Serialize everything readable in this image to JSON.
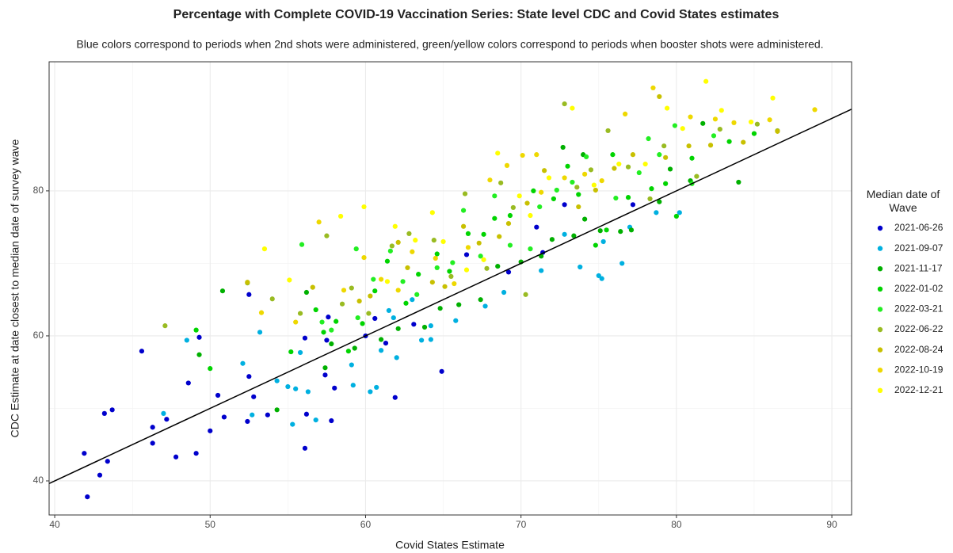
{
  "chart_data": {
    "type": "scatter",
    "title": "Percentage with Complete COVID-19 Vaccination Series: State level CDC and Covid States estimates",
    "subtitle": "Blue colors correspond to periods when 2nd shots were administered, green/yellow colors correspond to periods when booster shots were administered.",
    "x_label": "Covid States Estimate",
    "y_label": "CDC Estimate at date closest to median date of survey wave",
    "legend_title": "Median date of Wave",
    "xlim": [
      39.64,
      91.27
    ],
    "ylim": [
      35.3,
      97.8
    ],
    "xticks": [
      40,
      50,
      60,
      70,
      80,
      90
    ],
    "yticks": [
      40,
      60,
      80
    ],
    "grid": true,
    "reference_line": {
      "x": [
        39.64,
        91.27
      ],
      "y": [
        39.64,
        91.27
      ]
    },
    "series": [
      {
        "name": "2021-06-26",
        "color": "#0000cc",
        "x": [
          41.9,
          42.1,
          42.9,
          43.2,
          43.4,
          43.7,
          45.6,
          46.3,
          46.3,
          47.2,
          47.8,
          48.6,
          49.1,
          49.3,
          50,
          50.5,
          50.9,
          52.4,
          52.5,
          52.5,
          52.8,
          53.7,
          56.1,
          56.1,
          56.2,
          57.4,
          57.6,
          57.8,
          58,
          60,
          61.3,
          61.9,
          63.1,
          64.9,
          66.5,
          69.2,
          71,
          71.4,
          72.8,
          77.2,
          60.6,
          57.5
        ],
        "values": [
          43.8,
          37.8,
          40.8,
          49.3,
          42.7,
          49.8,
          57.9,
          45.2,
          47.4,
          48.5,
          43.3,
          53.5,
          43.8,
          59.8,
          46.9,
          51.8,
          48.8,
          48.2,
          54.4,
          65.7,
          51.6,
          49.1,
          44.5,
          59.7,
          49.2,
          54.6,
          62.6,
          48.3,
          52.8,
          60,
          59,
          51.5,
          61.6,
          55.1,
          71.2,
          68.8,
          75,
          71.5,
          78.1,
          78.1,
          62.4,
          59.4
        ]
      },
      {
        "name": "2021-09-07",
        "color": "#00b0e0",
        "x": [
          47,
          48.5,
          52.1,
          52.7,
          53.2,
          54.3,
          55,
          55.3,
          55.5,
          55.8,
          56.3,
          56.8,
          59.1,
          59.2,
          60.3,
          60.7,
          61,
          61.5,
          62,
          63,
          63.6,
          64.2,
          64.2,
          65.8,
          67.7,
          68.9,
          71.3,
          72.8,
          73.8,
          75,
          75.2,
          75.3,
          76.5,
          78.7,
          80.2,
          77,
          61.8
        ],
        "values": [
          49.3,
          59.4,
          56.2,
          49.1,
          60.5,
          53.8,
          53,
          47.8,
          52.7,
          57.7,
          52.3,
          48.4,
          56,
          53.2,
          52.3,
          52.9,
          58,
          63.5,
          57,
          65,
          59.4,
          59.5,
          61.4,
          62.1,
          64.1,
          66,
          69,
          74,
          69.5,
          68.3,
          67.9,
          73,
          70,
          77,
          77,
          75,
          62.5
        ]
      },
      {
        "name": "2021-11-17",
        "color": "#00b000",
        "x": [
          49.3,
          50.8,
          54.3,
          56.2,
          57.4,
          57.8,
          59.3,
          61,
          62.1,
          63.8,
          64.8,
          66,
          67.4,
          68.5,
          70,
          71.3,
          72,
          73.4,
          74.1,
          75.1,
          76.4,
          77.1,
          78.9,
          80.9,
          84,
          72.7,
          74,
          79.6,
          81.7
        ],
        "values": [
          57.4,
          66.2,
          49.8,
          66,
          55.6,
          58.9,
          58.3,
          59.5,
          61,
          61.2,
          63.8,
          64.3,
          65,
          69.6,
          70.2,
          71,
          73.3,
          73.8,
          76.1,
          74.5,
          74.4,
          74.6,
          78.5,
          81.4,
          81.2,
          86,
          85,
          83,
          89.3
        ]
      },
      {
        "name": "2022-01-02",
        "color": "#00d400",
        "x": [
          49.1,
          50,
          55.2,
          56.8,
          57.3,
          58.1,
          58.9,
          59.8,
          60.6,
          61.4,
          62.6,
          63.4,
          64.6,
          65.4,
          66.6,
          67.6,
          68.3,
          69.3,
          70.8,
          72.1,
          73,
          73.7,
          74.8,
          75.5,
          76.9,
          78.4,
          79.3,
          81,
          83.4,
          85,
          75.9,
          80
        ],
        "values": [
          60.8,
          55.5,
          57.8,
          63.6,
          60.5,
          62,
          57.9,
          61.7,
          66.2,
          70.3,
          64.5,
          68.5,
          71.3,
          68.9,
          74.1,
          74,
          76.2,
          76.6,
          80,
          78.9,
          83.4,
          79.5,
          72.5,
          74.6,
          79.1,
          80.3,
          81,
          84.5,
          86.8,
          87.9,
          85,
          76.5
        ]
      },
      {
        "name": "2022-03-21",
        "color": "#22ee22",
        "x": [
          55.9,
          57.2,
          57.8,
          59.4,
          59.5,
          60.5,
          61.6,
          62.4,
          63.3,
          64.6,
          65.6,
          66.3,
          67.4,
          68.3,
          69.3,
          70.6,
          71.2,
          72.3,
          73.3,
          74.2,
          76.1,
          77.6,
          78.2,
          78.9,
          79.9,
          81,
          82.4
        ],
        "values": [
          72.6,
          61.9,
          60.8,
          72,
          62.5,
          67.8,
          71.7,
          67.5,
          65.7,
          69.4,
          70.1,
          77.3,
          71,
          79.3,
          72.5,
          72,
          77.8,
          80.1,
          81.2,
          84.7,
          79,
          82.5,
          87.2,
          85,
          89,
          81,
          87.6
        ]
      },
      {
        "name": "2022-06-22",
        "color": "#99bb22",
        "x": [
          47.1,
          52.4,
          54,
          55.8,
          57.5,
          58.5,
          59.1,
          60.2,
          61.7,
          62.8,
          64.4,
          65.5,
          66.4,
          67.8,
          68.7,
          69.5,
          70.3,
          72.8,
          73.6,
          74.5,
          75.6,
          76.9,
          78.3,
          79.2,
          81.3,
          82.8,
          85.2,
          86.5
        ],
        "values": [
          61.4,
          67.3,
          65.1,
          63.1,
          73.8,
          64.4,
          66.6,
          63.1,
          72.4,
          74.1,
          73.2,
          68.2,
          79.6,
          69.3,
          81.1,
          77.7,
          65.7,
          92,
          80.5,
          82.9,
          88.3,
          83.3,
          78.9,
          86.2,
          82,
          88.5,
          89.2,
          88.3
        ]
      },
      {
        "name": "2022-08-24",
        "color": "#c8c000",
        "x": [
          52.4,
          56.6,
          59.6,
          60.3,
          62.1,
          62.7,
          64.3,
          65.1,
          66.3,
          67.3,
          68.6,
          69.2,
          70.4,
          71.5,
          73.7,
          74.8,
          76,
          77.2,
          78.9,
          79.3,
          80.8,
          82.2,
          84.3,
          86.5
        ],
        "values": [
          67.4,
          66.7,
          64.8,
          65.5,
          72.9,
          69.4,
          67.4,
          66.8,
          75.1,
          72.8,
          73.7,
          75.5,
          78.3,
          82.8,
          77.8,
          80.1,
          83.1,
          85,
          93,
          84.6,
          86.2,
          86.3,
          86.7,
          88.2
        ]
      },
      {
        "name": "2022-10-19",
        "color": "#eed800",
        "x": [
          53.3,
          55.5,
          57,
          58.6,
          59.9,
          61,
          62.1,
          63,
          64.5,
          65.7,
          66.6,
          68,
          69.1,
          70.1,
          71.3,
          72.8,
          74.1,
          75.2,
          76.7,
          78.5,
          80.9,
          82.5,
          83.7,
          86,
          88.9,
          71
        ],
        "values": [
          63.2,
          61.9,
          75.7,
          66.3,
          70.8,
          67.8,
          66.3,
          71.6,
          70.7,
          67.2,
          72.2,
          81.5,
          83.5,
          84.9,
          79.8,
          81.8,
          82.3,
          81.4,
          90.6,
          94.2,
          90.2,
          89.9,
          89.4,
          89.8,
          91.2,
          85
        ]
      },
      {
        "name": "2022-12-21",
        "color": "#ffff00",
        "x": [
          53.5,
          55.1,
          58.4,
          59.9,
          61.4,
          61.9,
          63.2,
          64.3,
          65,
          66.5,
          67.6,
          68.5,
          69.9,
          70.6,
          71.8,
          73.3,
          74.7,
          76.3,
          78,
          79.4,
          81.9,
          82.9,
          84.8,
          86.2,
          80.4
        ],
        "values": [
          72,
          67.7,
          76.5,
          77.8,
          67.5,
          75.1,
          73.2,
          77,
          73,
          69.1,
          70.5,
          85.2,
          79.3,
          76.6,
          81.8,
          91.4,
          80.8,
          83.7,
          83.7,
          91.4,
          95.1,
          91.1,
          89.5,
          92.8,
          88.6
        ]
      }
    ]
  }
}
